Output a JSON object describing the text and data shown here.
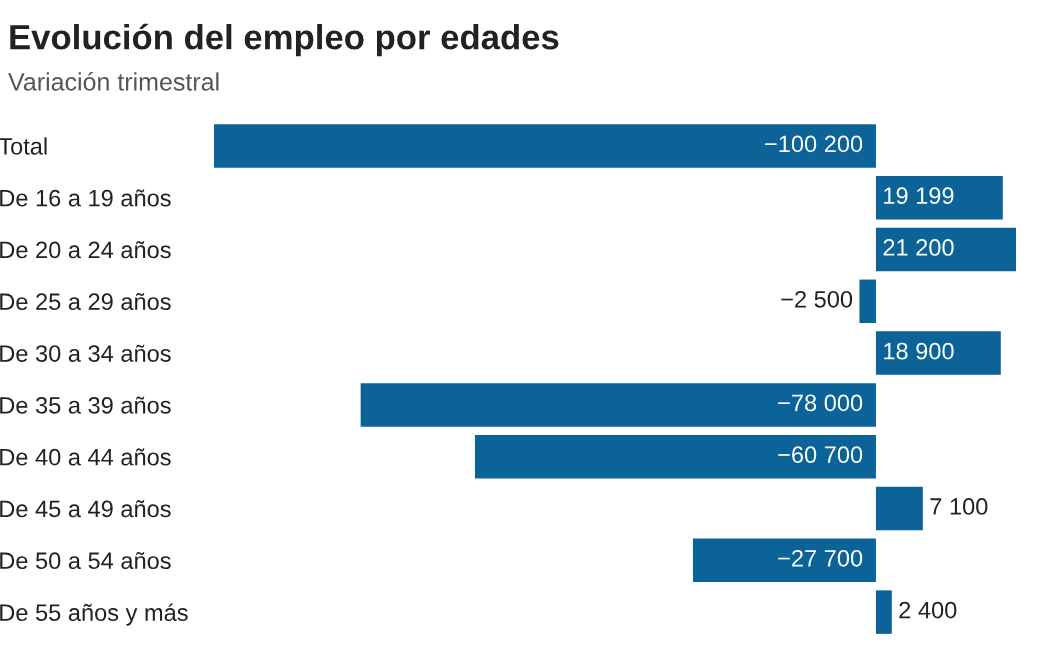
{
  "chart_data": {
    "type": "bar",
    "orientation": "horizontal",
    "title": "Evolución del empleo por edades",
    "subtitle": "Variación trimestral",
    "categories": [
      "Total",
      "De 16 a 19 años",
      "De 20 a 24 años",
      "De 25 a 29 años",
      "De 30 a 34 años",
      "De 35 a 39 años",
      "De 40 a 44 años",
      "De 45 a 49 años",
      "De 50 a 54 años",
      "De 55 años y más"
    ],
    "values": [
      -100200,
      19199,
      21200,
      -2500,
      18900,
      -78000,
      -60700,
      7100,
      -27700,
      2400
    ],
    "value_labels": [
      "−100 200",
      "19 199",
      "21 200",
      "−2 500",
      "18 900",
      "−78 000",
      "−60 700",
      "7 100",
      "−27 700",
      "2 400"
    ],
    "color": "#0b6397",
    "xlim": [
      -100200,
      21200
    ],
    "grid": false,
    "legend": false
  }
}
